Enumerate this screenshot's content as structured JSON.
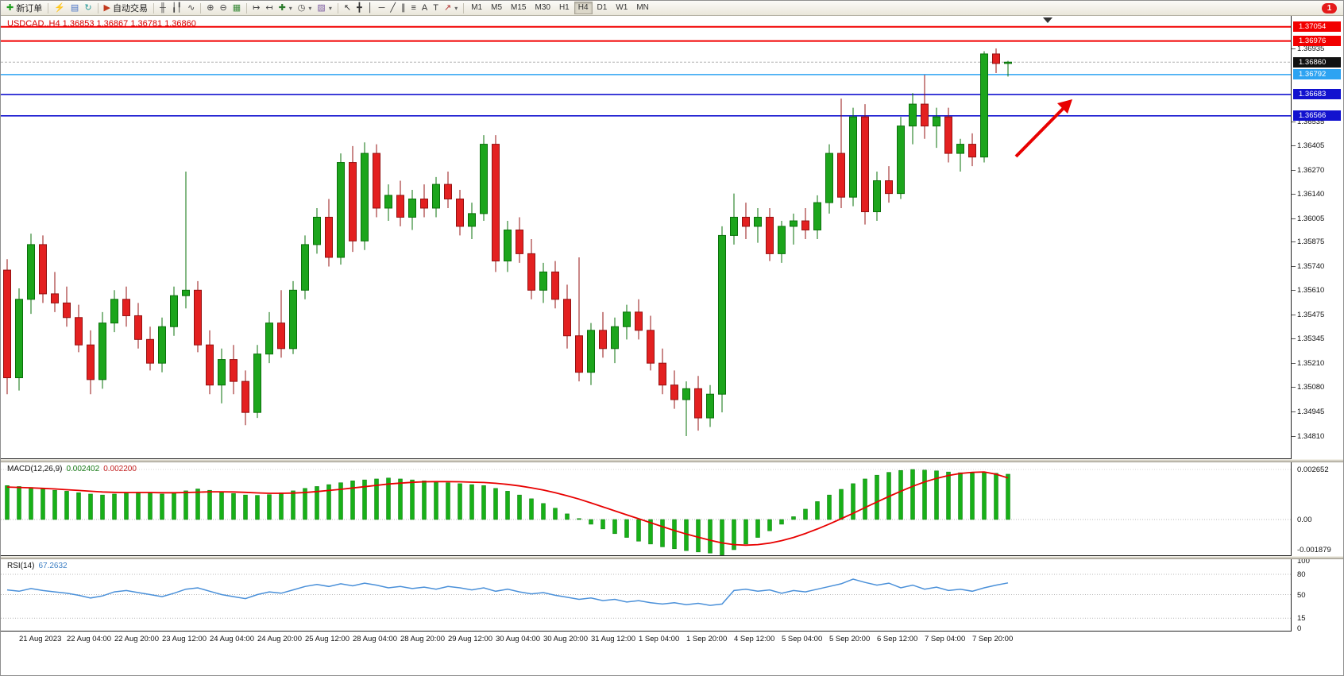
{
  "toolbar": {
    "new_order_label": "新订单",
    "autotrading_label": "自动交易",
    "timeframes": [
      "M1",
      "M5",
      "M15",
      "M30",
      "H1",
      "H4",
      "D1",
      "W1",
      "MN"
    ],
    "active_timeframe": "H4",
    "notification_count": "1"
  },
  "icons": {
    "new-order": "✚",
    "lightning": "⚡",
    "chart-window": "▤",
    "refresh": "↻",
    "autotrading": "▶",
    "bar-chart": "╫",
    "candle-chart": "╽╿",
    "line-chart": "∿",
    "zoom-in": "⊕",
    "zoom-out": "⊖",
    "tile-windows": "▦",
    "auto-scroll": "↦",
    "chart-shift": "↤",
    "indicators": "✚",
    "periods": "◷",
    "templates": "▨",
    "cursor": "↖",
    "crosshair": "╋",
    "vline": "│",
    "hline": "─",
    "trendline": "╱",
    "channel": "∥",
    "fibonacci": "≡",
    "text": "A",
    "label": "T",
    "arrows": "↗",
    "caret": "▾"
  },
  "chart": {
    "symbol": "USDCAD.",
    "period": "H4",
    "title": "USDCAD.,H4 1.36853 1.36867 1.36781 1.36860"
  },
  "macd": {
    "label": "MACD(12,26,9)",
    "value_main": "0.002402",
    "value_signal": "0.002200",
    "scale": [
      "0.002652",
      "0.00",
      "-0.001879"
    ]
  },
  "rsi": {
    "label": "RSI(14)",
    "value": "67.2632",
    "scale": [
      "100",
      "80",
      "50",
      "15",
      "0"
    ]
  },
  "price_axis": {
    "ticks": [
      "1.36935",
      "1.36535",
      "1.36405",
      "1.36270",
      "1.36140",
      "1.36005",
      "1.35875",
      "1.35740",
      "1.35610",
      "1.35475",
      "1.35345",
      "1.35210",
      "1.35080",
      "1.34945",
      "1.34810"
    ],
    "tags": [
      {
        "value": "1.37054",
        "color": "#f20000",
        "type": "resistance-line"
      },
      {
        "value": "1.36976",
        "color": "#f20000",
        "type": "resistance-line"
      },
      {
        "value": "1.36860",
        "color": "#111111",
        "type": "current-price"
      },
      {
        "value": "1.36792",
        "color": "#2da3f2",
        "type": "level-line"
      },
      {
        "value": "1.36683",
        "color": "#1212cf",
        "type": "support-line"
      },
      {
        "value": "1.36566",
        "color": "#1212cf",
        "type": "support-line"
      }
    ]
  },
  "time_axis": {
    "labels": [
      "21 Aug 2023",
      "22 Aug 04:00",
      "22 Aug 20:00",
      "23 Aug 12:00",
      "24 Aug 04:00",
      "24 Aug 20:00",
      "25 Aug 12:00",
      "28 Aug 04:00",
      "28 Aug 20:00",
      "29 Aug 12:00",
      "30 Aug 04:00",
      "30 Aug 20:00",
      "31 Aug 12:00",
      "1 Sep 04:00",
      "1 Sep 20:00",
      "4 Sep 12:00",
      "5 Sep 04:00",
      "5 Sep 20:00",
      "6 Sep 12:00",
      "7 Sep 04:00",
      "7 Sep 20:00"
    ]
  },
  "chart_data": {
    "type": "candlestick",
    "symbol": "USDCAD",
    "timeframe": "H4",
    "ylim": [
      1.34688,
      1.37118
    ],
    "bid": 1.3686,
    "colors": {
      "up": "#1ca51c",
      "up_border": "#0a700a",
      "down": "#e32020",
      "down_border": "#941111",
      "macd_hist": "#18b018",
      "macd_hist_border": "#0a7a0a",
      "macd_signal": "#e80000",
      "rsi_line": "#4a90d9",
      "grid": "#b8b8b8",
      "arrow": "#e80000"
    },
    "hlines": [
      {
        "price": 1.37054,
        "color": "#f20000",
        "width": 2
      },
      {
        "price": 1.36976,
        "color": "#f20000",
        "width": 2
      },
      {
        "price": 1.36792,
        "color": "#2da3f2",
        "width": 1.6
      },
      {
        "price": 1.36683,
        "color": "#1212cf",
        "width": 1.6
      },
      {
        "price": 1.36566,
        "color": "#1212cf",
        "width": 1.6
      }
    ],
    "candles": [
      [
        1.3572,
        1.3578,
        1.3504,
        1.3513
      ],
      [
        1.3513,
        1.3562,
        1.3506,
        1.3556
      ],
      [
        1.3556,
        1.3592,
        1.3548,
        1.3586
      ],
      [
        1.3586,
        1.3591,
        1.3554,
        1.3559
      ],
      [
        1.3559,
        1.3571,
        1.3549,
        1.3554
      ],
      [
        1.3554,
        1.3563,
        1.3541,
        1.3546
      ],
      [
        1.3546,
        1.3553,
        1.3527,
        1.3531
      ],
      [
        1.3531,
        1.3539,
        1.3504,
        1.3512
      ],
      [
        1.3512,
        1.3549,
        1.3507,
        1.3543
      ],
      [
        1.3543,
        1.3561,
        1.3538,
        1.3556
      ],
      [
        1.3556,
        1.3563,
        1.3541,
        1.3547
      ],
      [
        1.3547,
        1.3554,
        1.3529,
        1.3534
      ],
      [
        1.3534,
        1.3541,
        1.3517,
        1.3521
      ],
      [
        1.3521,
        1.3546,
        1.3516,
        1.3541
      ],
      [
        1.3541,
        1.3563,
        1.3536,
        1.3558
      ],
      [
        1.3558,
        1.3626,
        1.3551,
        1.3561
      ],
      [
        1.3561,
        1.3566,
        1.3527,
        1.3531
      ],
      [
        1.3531,
        1.3539,
        1.3504,
        1.3509
      ],
      [
        1.3509,
        1.3529,
        1.3499,
        1.3523
      ],
      [
        1.3523,
        1.3531,
        1.3504,
        1.3511
      ],
      [
        1.3511,
        1.3517,
        1.3487,
        1.3494
      ],
      [
        1.3494,
        1.3531,
        1.3491,
        1.3526
      ],
      [
        1.3526,
        1.3549,
        1.3521,
        1.3543
      ],
      [
        1.3543,
        1.3561,
        1.3524,
        1.3529
      ],
      [
        1.3529,
        1.3566,
        1.3526,
        1.3561
      ],
      [
        1.3561,
        1.3591,
        1.3556,
        1.3586
      ],
      [
        1.3586,
        1.3606,
        1.3581,
        1.3601
      ],
      [
        1.3601,
        1.3611,
        1.3574,
        1.3579
      ],
      [
        1.3579,
        1.3636,
        1.3575,
        1.3631
      ],
      [
        1.3631,
        1.364,
        1.3582,
        1.3588
      ],
      [
        1.3588,
        1.3642,
        1.3583,
        1.3636
      ],
      [
        1.3636,
        1.3641,
        1.3601,
        1.3606
      ],
      [
        1.3606,
        1.3619,
        1.3599,
        1.3613
      ],
      [
        1.3613,
        1.3621,
        1.3596,
        1.3601
      ],
      [
        1.3601,
        1.3616,
        1.3594,
        1.3611
      ],
      [
        1.3611,
        1.3619,
        1.3601,
        1.3606
      ],
      [
        1.3606,
        1.3623,
        1.3601,
        1.3619
      ],
      [
        1.3619,
        1.3626,
        1.3606,
        1.3611
      ],
      [
        1.3611,
        1.3616,
        1.3591,
        1.3596
      ],
      [
        1.3596,
        1.3609,
        1.3589,
        1.3603
      ],
      [
        1.3603,
        1.3646,
        1.3599,
        1.3641
      ],
      [
        1.3641,
        1.3646,
        1.3571,
        1.3577
      ],
      [
        1.3577,
        1.3599,
        1.3571,
        1.3594
      ],
      [
        1.3594,
        1.3601,
        1.3576,
        1.3581
      ],
      [
        1.3581,
        1.3589,
        1.3556,
        1.3561
      ],
      [
        1.3561,
        1.3576,
        1.3554,
        1.3571
      ],
      [
        1.3571,
        1.3577,
        1.3551,
        1.3556
      ],
      [
        1.3556,
        1.3564,
        1.3529,
        1.3536
      ],
      [
        1.3536,
        1.3579,
        1.3511,
        1.3516
      ],
      [
        1.3516,
        1.3543,
        1.3509,
        1.3539
      ],
      [
        1.3539,
        1.3549,
        1.3524,
        1.3529
      ],
      [
        1.3529,
        1.3546,
        1.3521,
        1.3541
      ],
      [
        1.3541,
        1.3553,
        1.3534,
        1.3549
      ],
      [
        1.3549,
        1.3556,
        1.3534,
        1.3539
      ],
      [
        1.3539,
        1.3547,
        1.3517,
        1.3521
      ],
      [
        1.3521,
        1.3529,
        1.3504,
        1.3509
      ],
      [
        1.3509,
        1.3517,
        1.3496,
        1.3501
      ],
      [
        1.3501,
        1.3511,
        1.3481,
        1.3507
      ],
      [
        1.3507,
        1.3514,
        1.3484,
        1.3491
      ],
      [
        1.3491,
        1.3509,
        1.3486,
        1.3504
      ],
      [
        1.3504,
        1.3596,
        1.3494,
        1.3591
      ],
      [
        1.3591,
        1.3614,
        1.3586,
        1.3601
      ],
      [
        1.3601,
        1.3609,
        1.3589,
        1.3596
      ],
      [
        1.3596,
        1.3606,
        1.3587,
        1.3601
      ],
      [
        1.3601,
        1.3606,
        1.3577,
        1.3581
      ],
      [
        1.3581,
        1.3599,
        1.3576,
        1.3596
      ],
      [
        1.3596,
        1.3603,
        1.3586,
        1.3599
      ],
      [
        1.3599,
        1.3606,
        1.3589,
        1.3594
      ],
      [
        1.3594,
        1.3613,
        1.3589,
        1.3609
      ],
      [
        1.3609,
        1.3641,
        1.3603,
        1.3636
      ],
      [
        1.3636,
        1.3666,
        1.3606,
        1.3612
      ],
      [
        1.3612,
        1.3661,
        1.3607,
        1.3656
      ],
      [
        1.3656,
        1.3663,
        1.3597,
        1.3604
      ],
      [
        1.3604,
        1.3626,
        1.3599,
        1.3621
      ],
      [
        1.3621,
        1.3629,
        1.3609,
        1.3614
      ],
      [
        1.3614,
        1.3656,
        1.3611,
        1.3651
      ],
      [
        1.3651,
        1.3669,
        1.3641,
        1.3663
      ],
      [
        1.3663,
        1.3679,
        1.3644,
        1.3651
      ],
      [
        1.3651,
        1.3661,
        1.3639,
        1.3656
      ],
      [
        1.3656,
        1.3661,
        1.3631,
        1.3636
      ],
      [
        1.3636,
        1.3644,
        1.3626,
        1.3641
      ],
      [
        1.3641,
        1.3647,
        1.3629,
        1.3634
      ],
      [
        1.3634,
        1.3692,
        1.3631,
        1.36905
      ],
      [
        1.36905,
        1.36935,
        1.368,
        1.36853
      ],
      [
        1.36853,
        1.36867,
        1.36781,
        1.3686
      ]
    ],
    "macd": {
      "histogram": [
        0.0018,
        0.00175,
        0.0017,
        0.00162,
        0.00155,
        0.0015,
        0.00142,
        0.00135,
        0.0013,
        0.00135,
        0.00142,
        0.00145,
        0.0014,
        0.00135,
        0.00142,
        0.00152,
        0.00162,
        0.00155,
        0.00145,
        0.00138,
        0.0013,
        0.00128,
        0.00132,
        0.00142,
        0.00152,
        0.00165,
        0.00175,
        0.00185,
        0.00195,
        0.00205,
        0.0021,
        0.00215,
        0.0022,
        0.00215,
        0.0021,
        0.00205,
        0.002,
        0.00195,
        0.0019,
        0.00185,
        0.0018,
        0.00165,
        0.0015,
        0.0013,
        0.0011,
        0.00085,
        0.0006,
        0.0003,
        5e-05,
        -0.00025,
        -0.0005,
        -0.00075,
        -0.00095,
        -0.00115,
        -0.0013,
        -0.00145,
        -0.00155,
        -0.00165,
        -0.00172,
        -0.00178,
        -0.001879,
        -0.0016,
        -0.0013,
        -0.00095,
        -0.0006,
        -0.00025,
        0.00015,
        0.00055,
        0.00095,
        0.0013,
        0.0016,
        0.0019,
        0.00215,
        0.00235,
        0.0025,
        0.0026,
        0.002652,
        0.00262,
        0.00258,
        0.00252,
        0.00248,
        0.00245,
        0.0025,
        0.00245,
        0.002402
      ],
      "signal": [
        0.00172,
        0.0017,
        0.00168,
        0.00165,
        0.00162,
        0.00158,
        0.00154,
        0.0015,
        0.00146,
        0.00144,
        0.00143,
        0.00143,
        0.00143,
        0.00142,
        0.00142,
        0.00143,
        0.00145,
        0.00147,
        0.00147,
        0.00146,
        0.00144,
        0.00141,
        0.00139,
        0.00139,
        0.0014,
        0.00143,
        0.00148,
        0.00154,
        0.0016,
        0.00167,
        0.00174,
        0.00181,
        0.00188,
        0.00193,
        0.00197,
        0.002,
        0.00201,
        0.00201,
        0.002,
        0.00198,
        0.00196,
        0.00192,
        0.00186,
        0.00178,
        0.00168,
        0.00156,
        0.00142,
        0.00126,
        0.00108,
        0.00088,
        0.00067,
        0.00046,
        0.00025,
        4e-05,
        -0.00017,
        -0.00038,
        -0.00058,
        -0.00077,
        -0.00094,
        -0.0011,
        -0.00124,
        -0.00133,
        -0.00136,
        -0.00133,
        -0.00125,
        -0.00112,
        -0.00095,
        -0.00074,
        -0.0005,
        -0.00024,
        4e-05,
        0.00033,
        0.00063,
        0.00093,
        0.00122,
        0.0015,
        0.00176,
        0.00199,
        0.00218,
        0.00233,
        0.00244,
        0.0025,
        0.00252,
        0.0024,
        0.0022
      ]
    },
    "rsi_values": [
      57,
      55,
      59,
      56,
      54,
      52,
      49,
      45,
      48,
      54,
      56,
      53,
      50,
      47,
      52,
      58,
      60,
      55,
      50,
      47,
      44,
      50,
      54,
      52,
      57,
      62,
      65,
      62,
      66,
      63,
      67,
      64,
      60,
      62,
      59,
      61,
      58,
      62,
      60,
      57,
      60,
      55,
      58,
      54,
      51,
      53,
      49,
      46,
      43,
      45,
      41,
      43,
      39,
      41,
      38,
      36,
      38,
      35,
      37,
      34,
      36,
      56,
      58,
      55,
      57,
      52,
      56,
      54,
      58,
      62,
      66,
      73,
      68,
      64,
      67,
      60,
      64,
      58,
      61,
      56,
      58,
      55,
      60,
      64,
      67.2632
    ],
    "annotations": [
      {
        "type": "arrow-up-right",
        "color": "#e80000"
      }
    ]
  }
}
